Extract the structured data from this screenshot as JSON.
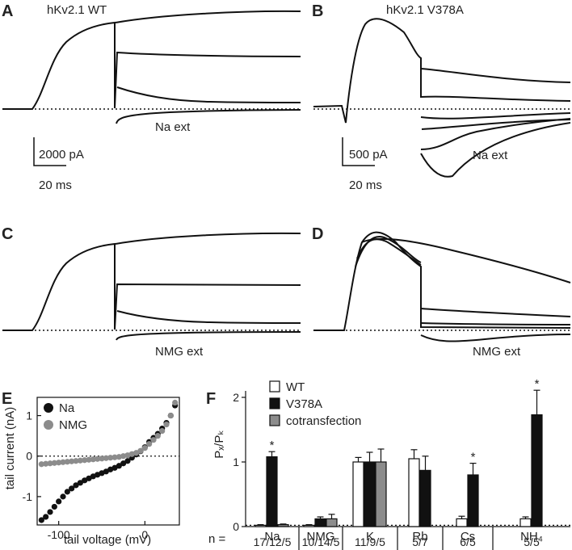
{
  "panels": {
    "A": {
      "letter": "A",
      "title": "hKv2.1 WT",
      "annotation": "Na ext",
      "scale_current": "2000 pA",
      "scale_time": "20 ms"
    },
    "B": {
      "letter": "B",
      "title": "hKv2.1 V378A",
      "annotation": "Na ext",
      "scale_current": "500 pA",
      "scale_time": "20 ms"
    },
    "C": {
      "letter": "C",
      "annotation": "NMG ext"
    },
    "D": {
      "letter": "D",
      "annotation": "NMG ext"
    },
    "E": {
      "letter": "E"
    },
    "F": {
      "letter": "F"
    }
  },
  "colors": {
    "ink": "#111111",
    "gray_series": "#8c8c8c",
    "white_bar": "#ffffff"
  },
  "chart_data": [
    {
      "id": "E",
      "type": "scatter",
      "xlabel": "tail voltage (mV)",
      "ylabel": "tail current (nA)",
      "xlim": [
        -125,
        40
      ],
      "ylim": [
        -1.7,
        1.45
      ],
      "xticks": [
        -100,
        0
      ],
      "xtick_labels": [
        "-100",
        "0"
      ],
      "yticks": [
        -1,
        0,
        1
      ],
      "ytick_labels": [
        "-1",
        "0",
        "1"
      ],
      "legend": [
        "Na",
        "NMG"
      ],
      "series": [
        {
          "name": "Na",
          "color": "#111111",
          "x": [
            -120,
            -115,
            -110,
            -105,
            -100,
            -95,
            -90,
            -85,
            -80,
            -75,
            -70,
            -65,
            -60,
            -55,
            -50,
            -45,
            -40,
            -35,
            -30,
            -25,
            -20,
            -15,
            -10,
            -5,
            0,
            5,
            10,
            15,
            20,
            25,
            30,
            35
          ],
          "y": [
            -1.58,
            -1.5,
            -1.38,
            -1.25,
            -1.12,
            -1.0,
            -0.88,
            -0.8,
            -0.72,
            -0.66,
            -0.6,
            -0.55,
            -0.5,
            -0.46,
            -0.42,
            -0.38,
            -0.33,
            -0.29,
            -0.24,
            -0.18,
            -0.12,
            -0.04,
            0.04,
            0.12,
            0.22,
            0.35,
            0.45,
            0.55,
            0.68,
            0.82,
            1.0,
            1.25
          ]
        },
        {
          "name": "NMG",
          "color": "#8c8c8c",
          "x": [
            -120,
            -115,
            -110,
            -105,
            -100,
            -95,
            -90,
            -85,
            -80,
            -75,
            -70,
            -65,
            -60,
            -55,
            -50,
            -45,
            -40,
            -35,
            -30,
            -25,
            -20,
            -15,
            -10,
            -5,
            0,
            5,
            10,
            15,
            20,
            25,
            30,
            35
          ],
          "y": [
            -0.2,
            -0.19,
            -0.18,
            -0.17,
            -0.16,
            -0.15,
            -0.14,
            -0.13,
            -0.12,
            -0.11,
            -0.1,
            -0.09,
            -0.08,
            -0.07,
            -0.06,
            -0.05,
            -0.04,
            -0.03,
            -0.02,
            0.0,
            0.02,
            0.05,
            0.08,
            0.13,
            0.2,
            0.3,
            0.4,
            0.5,
            0.62,
            0.78,
            1.0,
            1.32
          ]
        }
      ]
    },
    {
      "id": "F",
      "type": "bar",
      "ylabel": "Pₓ/Pₖ",
      "ylim": [
        0,
        2.1
      ],
      "yticks": [
        0,
        1,
        2
      ],
      "ytick_labels": [
        "0",
        "1",
        "2"
      ],
      "categories": [
        "Na",
        "NMG",
        "K",
        "Rb",
        "Cs",
        "NH₄"
      ],
      "n_prefix": "n = ",
      "n_values": [
        "17/12/5",
        "10/14/5",
        "11/9/5",
        "5/7",
        "6/5",
        "5/5"
      ],
      "legend": [
        "WT",
        "V378A",
        "cotransfection"
      ],
      "series": [
        {
          "name": "WT",
          "color": "#ffffff",
          "values": [
            0.02,
            0.02,
            1.0,
            1.05,
            0.12,
            0.12
          ],
          "errors": [
            0.01,
            0.01,
            0.07,
            0.14,
            0.04,
            0.03
          ]
        },
        {
          "name": "V378A",
          "color": "#111111",
          "values": [
            1.08,
            0.12,
            1.0,
            0.87,
            0.8,
            1.73
          ],
          "errors": [
            0.08,
            0.03,
            0.15,
            0.22,
            0.18,
            0.38
          ]
        },
        {
          "name": "cotransfection",
          "color": "#8c8c8c",
          "values": [
            0.03,
            0.12,
            1.0,
            null,
            null,
            null
          ],
          "errors": [
            0.01,
            0.07,
            0.2,
            null,
            null,
            null
          ]
        }
      ],
      "significance_marker": "*",
      "significant": [
        [
          0,
          1
        ],
        [
          4,
          1
        ],
        [
          5,
          1
        ]
      ]
    }
  ]
}
